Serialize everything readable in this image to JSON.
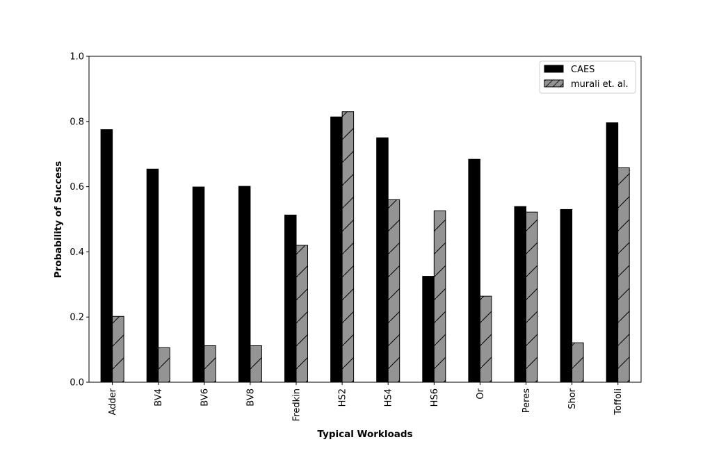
{
  "chart_data": {
    "type": "bar",
    "title": "",
    "xlabel": "Typical Workloads",
    "ylabel": "Probability of Success",
    "ylim": [
      0,
      1.0
    ],
    "yticks": [
      "0.0",
      "0.2",
      "0.4",
      "0.6",
      "0.8",
      "1.0"
    ],
    "grid": false,
    "legend_position": "top-right",
    "categories": [
      "Adder",
      "BV4",
      "BV6",
      "BV8",
      "Fredkin",
      "HS2",
      "HS4",
      "HS6",
      "Or",
      "Peres",
      "Shor",
      "Toffoli"
    ],
    "series": [
      {
        "name": "CAES",
        "color": "#000000",
        "hatch": "none",
        "values": [
          0.775,
          0.654,
          0.599,
          0.601,
          0.513,
          0.814,
          0.75,
          0.325,
          0.684,
          0.539,
          0.53,
          0.796
        ]
      },
      {
        "name": "murali et. al.",
        "color": "#949494",
        "hatch": "diagonal",
        "values": [
          0.202,
          0.106,
          0.112,
          0.112,
          0.42,
          0.83,
          0.56,
          0.526,
          0.264,
          0.522,
          0.121,
          0.658
        ]
      }
    ]
  }
}
